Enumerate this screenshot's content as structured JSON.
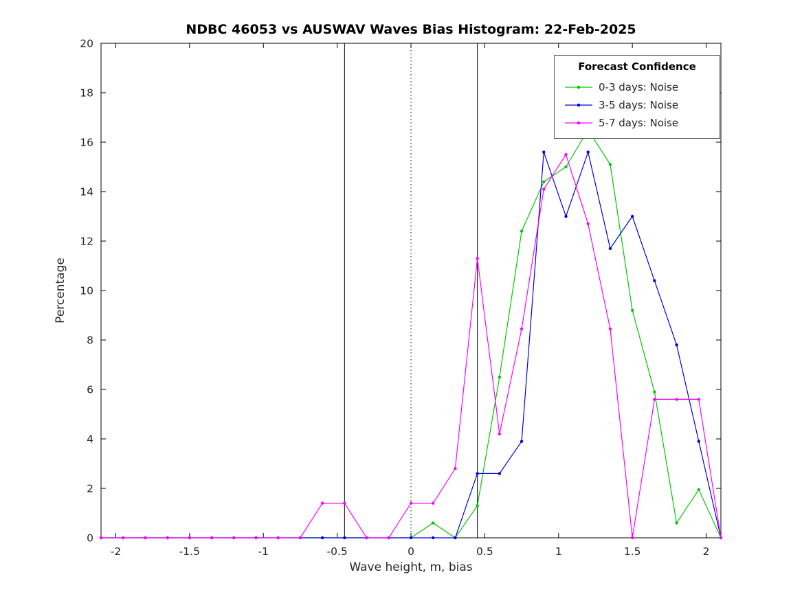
{
  "chart_data": {
    "type": "line",
    "title": "NDBC 46053 vs AUSWAV Waves Bias Histogram: 22-Feb-2025",
    "xlabel": "Wave height, m, bias",
    "ylabel": "Percentage",
    "xlim": [
      -2.1,
      2.1
    ],
    "ylim": [
      0,
      20
    ],
    "grid": false,
    "x_tick_values": [
      -2,
      -1.5,
      -1,
      -0.5,
      0,
      0.5,
      1,
      1.5,
      2
    ],
    "x_tick_labels": [
      "-2",
      "-1.5",
      "-1",
      "-0.5",
      "0",
      "0.5",
      "1",
      "1.5",
      "2"
    ],
    "y_tick_values": [
      0,
      2,
      4,
      6,
      8,
      10,
      12,
      14,
      16,
      18,
      20
    ],
    "y_tick_labels": [
      "0",
      "2",
      "4",
      "6",
      "8",
      "10",
      "12",
      "14",
      "16",
      "18",
      "20"
    ],
    "x": [
      -2.1,
      -1.95,
      -1.8,
      -1.65,
      -1.5,
      -1.35,
      -1.2,
      -1.05,
      -0.9,
      -0.75,
      -0.6,
      -0.45,
      -0.3,
      -0.15,
      0,
      0.15,
      0.3,
      0.45,
      0.6,
      0.75,
      0.9,
      1.05,
      1.2,
      1.35,
      1.5,
      1.65,
      1.8,
      1.95,
      2.1
    ],
    "series": [
      {
        "name": "0-3 days: Noise",
        "color": "#00c800",
        "values": [
          0,
          0,
          0,
          0,
          0,
          0,
          0,
          0,
          0,
          0,
          0,
          0,
          0,
          0,
          0,
          0.6,
          0,
          1.3,
          6.5,
          12.4,
          14.4,
          15.0,
          16.5,
          15.1,
          9.2,
          5.9,
          0.6,
          1.95,
          0
        ]
      },
      {
        "name": "3-5 days: Noise",
        "color": "#0000e0",
        "values": [
          0,
          0,
          0,
          0,
          0,
          0,
          0,
          0,
          0,
          0,
          0,
          0,
          0,
          0,
          0,
          0,
          0,
          2.6,
          2.6,
          3.9,
          15.6,
          13.0,
          15.6,
          11.7,
          13.0,
          10.4,
          7.8,
          3.9,
          0
        ]
      },
      {
        "name": "5-7 days: Noise",
        "color": "#ff00ff",
        "values": [
          0,
          0,
          0,
          0,
          0,
          0,
          0,
          0,
          0,
          0,
          1.4,
          1.4,
          0,
          0,
          1.4,
          1.4,
          2.8,
          11.3,
          4.2,
          8.45,
          14.1,
          15.5,
          12.7,
          8.45,
          0,
          5.6,
          5.6,
          5.6,
          0
        ]
      }
    ],
    "vlines": [
      {
        "x": -0.45,
        "style": "solid"
      },
      {
        "x": 0,
        "style": "dotted"
      },
      {
        "x": 0.45,
        "style": "solid"
      }
    ],
    "legend": {
      "title": "Forecast Confidence",
      "position": "top-right"
    }
  }
}
